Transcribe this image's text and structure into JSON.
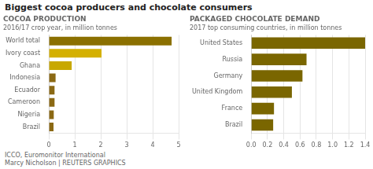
{
  "title": "Biggest cocoa producers and chocolate consumers",
  "annotations": [
    "ICCO, Euromonitor International",
    "Marcy Nicholson  |  REUTERS GRAPHICS"
  ],
  "chart_data": [
    {
      "type": "bar",
      "orientation": "horizontal",
      "title": "COCOA PRODUCTION",
      "subtitle": "2016/17 crop year, in million tonnes",
      "categories": [
        "Brazil",
        "Nigeria",
        "Cameroon",
        "Ecuador",
        "Indonesia",
        "Ghana",
        "Ivory coast",
        "World total"
      ],
      "values": [
        0.18,
        0.19,
        0.22,
        0.22,
        0.26,
        0.88,
        2.03,
        4.73
      ],
      "colors": [
        "#8b6914",
        "#8b6914",
        "#8b6914",
        "#8b6914",
        "#8b6914",
        "#c8a800",
        "#d4b000",
        "#8b7000"
      ],
      "xlim": [
        0,
        5
      ],
      "xticks": [
        0,
        1,
        2,
        3,
        4,
        5
      ],
      "grid": true
    },
    {
      "type": "bar",
      "orientation": "horizontal",
      "title": "PACKAGED CHOCOLATE DEMAND",
      "subtitle": "2017 top consuming countries, in million tonnes",
      "categories": [
        "Brazil",
        "France",
        "United Kingdom",
        "Germany",
        "Russia",
        "United States"
      ],
      "values": [
        0.27,
        0.28,
        0.5,
        0.63,
        0.68,
        1.4
      ],
      "color": "#7a6600",
      "xlim": [
        0,
        1.4
      ],
      "xticks": [
        {
          "value": 0,
          "label": "0.0"
        },
        0.2,
        0.4,
        0.6,
        0.8,
        {
          "value": 1,
          "label": "1.0"
        },
        1.2,
        1.4
      ],
      "grid": true
    }
  ]
}
